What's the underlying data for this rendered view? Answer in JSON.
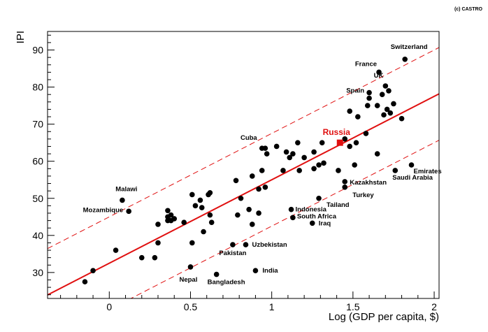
{
  "credit": "(c) CASTRO",
  "chart_data": {
    "type": "scatter",
    "title": "",
    "xlabel": "Log (GDP per capita, $)",
    "ylabel": "IPI",
    "xlim": [
      -0.38,
      2.03
    ],
    "ylim": [
      23,
      95
    ],
    "xticks": [
      0,
      0.5,
      1,
      1.5,
      2
    ],
    "xtick_labels": [
      "0",
      "0.5",
      "1",
      "1.5",
      "2"
    ],
    "yticks": [
      30,
      40,
      50,
      60,
      70,
      80,
      90
    ],
    "ytick_labels": [
      "30",
      "40",
      "50",
      "60",
      "70",
      "80",
      "90"
    ],
    "point_color": "#000000",
    "fit_color": "#e01010",
    "fit": {
      "slope": 22.5,
      "intercept": 32.5,
      "band": 12.5
    },
    "highlight": {
      "name": "Russia",
      "x": 1.42,
      "y": 65,
      "color": "#e01010"
    },
    "labeled_points": [
      {
        "name": "Switzerland",
        "x": 1.82,
        "y": 87.5
      },
      {
        "name": "France",
        "x": 1.66,
        "y": 84
      },
      {
        "name": "UK",
        "x": 1.7,
        "y": 80.3
      },
      {
        "name": "Spain",
        "x": 1.6,
        "y": 77
      },
      {
        "name": "Cuba",
        "x": 0.94,
        "y": 63.5
      },
      {
        "name": "Malawi",
        "x": 0.08,
        "y": 49.5
      },
      {
        "name": "Mozambique",
        "x": 0.12,
        "y": 46.5
      },
      {
        "name": "Emirates",
        "x": 1.86,
        "y": 59
      },
      {
        "name": "Saudi Arabia",
        "x": 1.76,
        "y": 57.5
      },
      {
        "name": "Kazakhstan",
        "x": 1.45,
        "y": 54.5
      },
      {
        "name": "Turkey",
        "x": 1.45,
        "y": 53
      },
      {
        "name": "Tailand",
        "x": 1.29,
        "y": 50
      },
      {
        "name": "Indonesia",
        "x": 1.12,
        "y": 47
      },
      {
        "name": "South Africa",
        "x": 1.13,
        "y": 44.8
      },
      {
        "name": "Iraq",
        "x": 1.25,
        "y": 43.3
      },
      {
        "name": "Uzbekistan",
        "x": 0.84,
        "y": 37.5
      },
      {
        "name": "Pakistan",
        "x": 0.76,
        "y": 37.5
      },
      {
        "name": "Nepal",
        "x": 0.5,
        "y": 31.5
      },
      {
        "name": "India",
        "x": 0.9,
        "y": 30.5
      },
      {
        "name": "Bangladesh",
        "x": 0.66,
        "y": 29.5
      }
    ],
    "points": [
      {
        "x": -0.15,
        "y": 27.5
      },
      {
        "x": -0.1,
        "y": 30.5
      },
      {
        "x": 0.04,
        "y": 36
      },
      {
        "x": 0.2,
        "y": 34
      },
      {
        "x": 0.28,
        "y": 34
      },
      {
        "x": 0.3,
        "y": 38
      },
      {
        "x": 0.3,
        "y": 43
      },
      {
        "x": 0.36,
        "y": 44
      },
      {
        "x": 0.36,
        "y": 45
      },
      {
        "x": 0.36,
        "y": 46.7
      },
      {
        "x": 0.38,
        "y": 44
      },
      {
        "x": 0.38,
        "y": 45.5
      },
      {
        "x": 0.4,
        "y": 44.5
      },
      {
        "x": 0.46,
        "y": 43.5
      },
      {
        "x": 0.51,
        "y": 51
      },
      {
        "x": 0.51,
        "y": 38
      },
      {
        "x": 0.53,
        "y": 48
      },
      {
        "x": 0.56,
        "y": 49.5
      },
      {
        "x": 0.57,
        "y": 47.5
      },
      {
        "x": 0.58,
        "y": 41
      },
      {
        "x": 0.61,
        "y": 51
      },
      {
        "x": 0.62,
        "y": 51.5
      },
      {
        "x": 0.62,
        "y": 45.5
      },
      {
        "x": 0.63,
        "y": 43.5
      },
      {
        "x": 0.78,
        "y": 54.8
      },
      {
        "x": 0.79,
        "y": 45.5
      },
      {
        "x": 0.81,
        "y": 50
      },
      {
        "x": 0.86,
        "y": 47
      },
      {
        "x": 0.88,
        "y": 56
      },
      {
        "x": 0.88,
        "y": 43
      },
      {
        "x": 0.92,
        "y": 46
      },
      {
        "x": 0.92,
        "y": 52.5
      },
      {
        "x": 0.94,
        "y": 57.5
      },
      {
        "x": 0.96,
        "y": 53
      },
      {
        "x": 0.96,
        "y": 63.5
      },
      {
        "x": 0.97,
        "y": 62
      },
      {
        "x": 1.03,
        "y": 64
      },
      {
        "x": 1.07,
        "y": 57.5
      },
      {
        "x": 1.09,
        "y": 62.5
      },
      {
        "x": 1.11,
        "y": 61
      },
      {
        "x": 1.13,
        "y": 62
      },
      {
        "x": 1.16,
        "y": 65
      },
      {
        "x": 1.17,
        "y": 57.5
      },
      {
        "x": 1.2,
        "y": 61
      },
      {
        "x": 1.26,
        "y": 58
      },
      {
        "x": 1.26,
        "y": 62.5
      },
      {
        "x": 1.29,
        "y": 59
      },
      {
        "x": 1.31,
        "y": 65
      },
      {
        "x": 1.32,
        "y": 59.5
      },
      {
        "x": 1.41,
        "y": 57.5
      },
      {
        "x": 1.45,
        "y": 66
      },
      {
        "x": 1.48,
        "y": 64
      },
      {
        "x": 1.48,
        "y": 73.5
      },
      {
        "x": 1.51,
        "y": 59
      },
      {
        "x": 1.52,
        "y": 65
      },
      {
        "x": 1.53,
        "y": 72
      },
      {
        "x": 1.58,
        "y": 67.5
      },
      {
        "x": 1.59,
        "y": 75
      },
      {
        "x": 1.6,
        "y": 78.5
      },
      {
        "x": 1.65,
        "y": 75
      },
      {
        "x": 1.65,
        "y": 62
      },
      {
        "x": 1.68,
        "y": 78
      },
      {
        "x": 1.69,
        "y": 72.5
      },
      {
        "x": 1.71,
        "y": 74
      },
      {
        "x": 1.72,
        "y": 79
      },
      {
        "x": 1.73,
        "y": 73
      },
      {
        "x": 1.75,
        "y": 75.5
      },
      {
        "x": 1.8,
        "y": 71.5
      }
    ]
  }
}
